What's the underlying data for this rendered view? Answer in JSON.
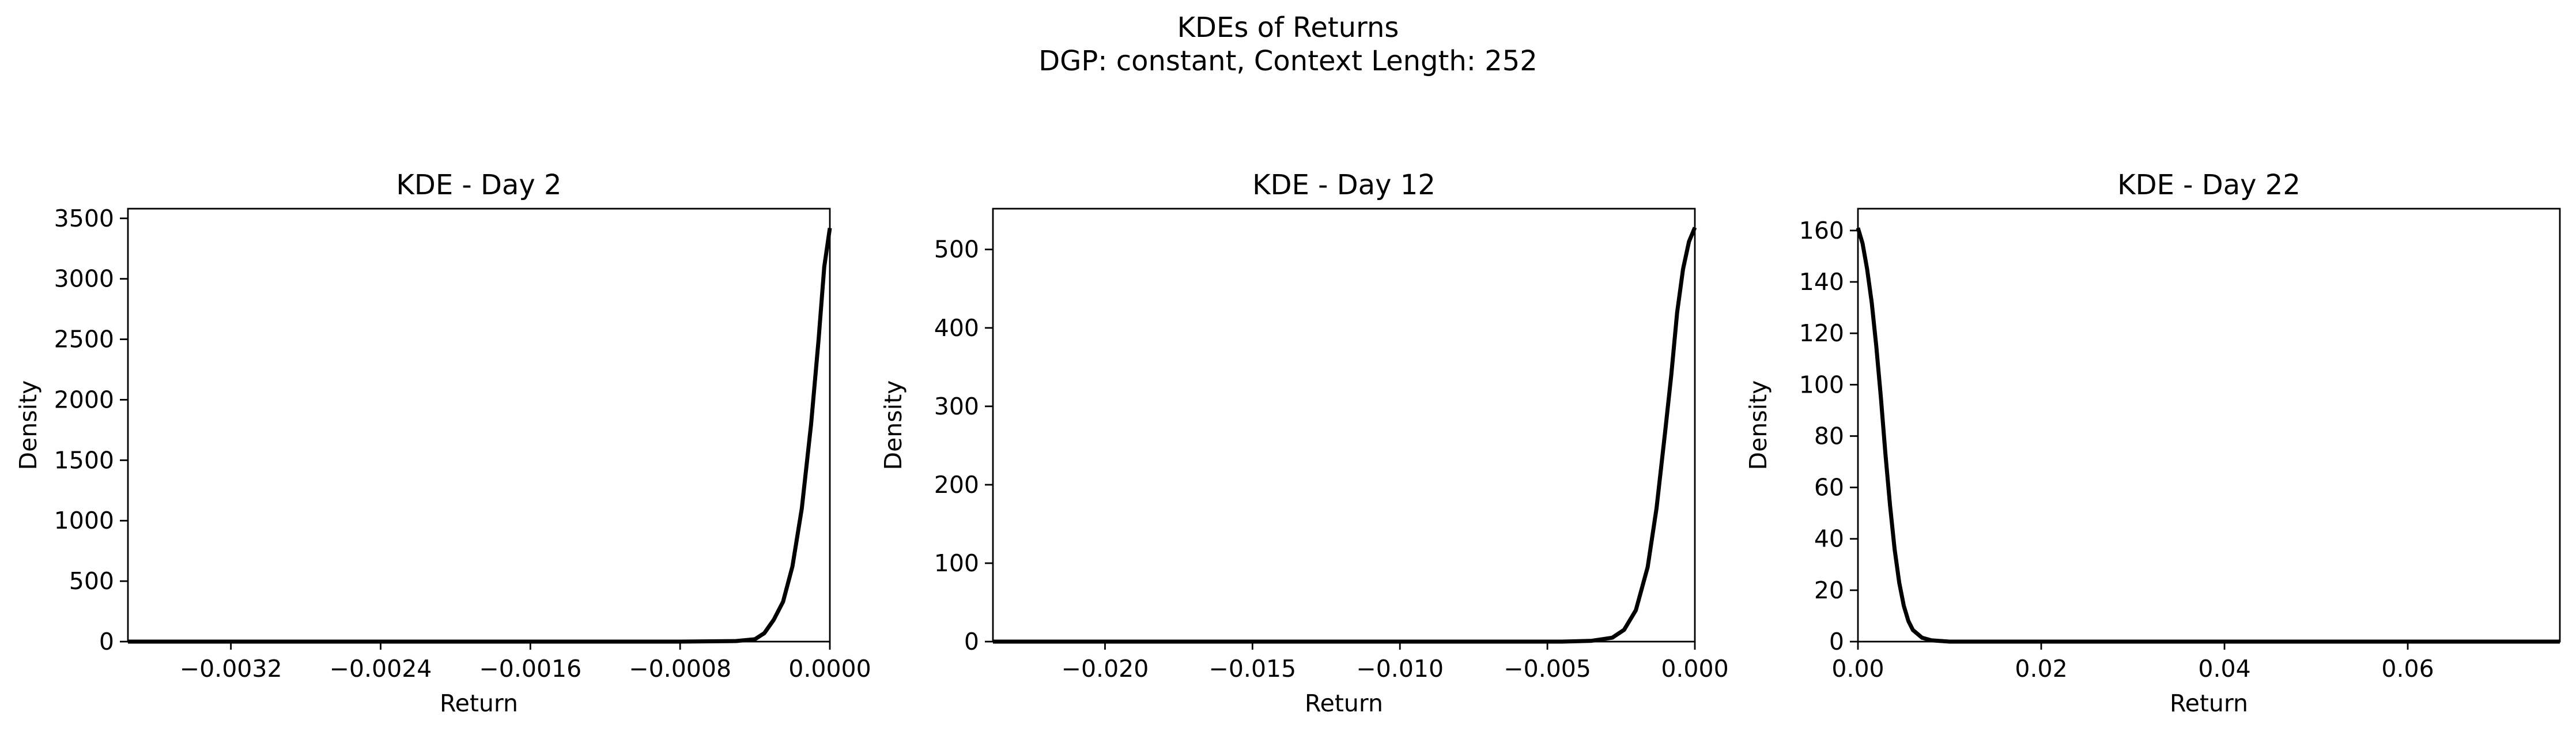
{
  "figure": {
    "suptitle_line1": "KDEs of Returns",
    "suptitle_line2": "DGP: constant, Context Length: 252",
    "line_color": "#000000"
  },
  "chart_data": [
    {
      "type": "line",
      "title": "KDE - Day 2",
      "xlabel": "Return",
      "ylabel": "Density",
      "xlim": [
        -0.00375,
        0.0
      ],
      "ylim": [
        0,
        3580
      ],
      "xticks": [
        -0.0032,
        -0.0024,
        -0.0016,
        -0.0008,
        0.0
      ],
      "xtick_labels": [
        "−0.0032",
        "−0.0024",
        "−0.0016",
        "−0.0008",
        "0.0000"
      ],
      "yticks": [
        0,
        500,
        1000,
        1500,
        2000,
        2500,
        3000,
        3500
      ],
      "ytick_labels": [
        "0",
        "500",
        "1000",
        "1500",
        "2000",
        "2500",
        "3000",
        "3500"
      ],
      "series": [
        {
          "x": [
            -0.00375,
            -0.0008,
            -0.0005,
            -0.0004,
            -0.00035,
            -0.0003,
            -0.00025,
            -0.0002,
            -0.00015,
            -0.0001,
            -6e-05,
            -3e-05,
            0.0
          ],
          "y": [
            0,
            0,
            5,
            20,
            70,
            180,
            330,
            620,
            1100,
            1800,
            2500,
            3100,
            3420
          ]
        }
      ]
    },
    {
      "type": "line",
      "title": "KDE - Day 12",
      "xlabel": "Return",
      "ylabel": "Density",
      "xlim": [
        -0.0238,
        0.0
      ],
      "ylim": [
        0,
        552
      ],
      "xticks": [
        -0.02,
        -0.015,
        -0.01,
        -0.005,
        0.0
      ],
      "xtick_labels": [
        "−0.020",
        "−0.015",
        "−0.010",
        "−0.005",
        "0.000"
      ],
      "yticks": [
        0,
        100,
        200,
        300,
        400,
        500
      ],
      "ytick_labels": [
        "0",
        "100",
        "200",
        "300",
        "400",
        "500"
      ],
      "series": [
        {
          "x": [
            -0.0238,
            -0.0045,
            -0.0035,
            -0.0028,
            -0.0024,
            -0.002,
            -0.0016,
            -0.0013,
            -0.001,
            -0.0008,
            -0.0006,
            -0.0004,
            -0.0002,
            0.0
          ],
          "y": [
            0,
            0,
            1,
            5,
            15,
            40,
            95,
            170,
            270,
            340,
            420,
            475,
            510,
            528
          ]
        }
      ]
    },
    {
      "type": "line",
      "title": "KDE - Day 22",
      "xlabel": "Return",
      "ylabel": "Density",
      "xlim": [
        0.0,
        0.0766
      ],
      "ylim": [
        0,
        168.5
      ],
      "xticks": [
        0.0,
        0.02,
        0.04,
        0.06
      ],
      "xtick_labels": [
        "0.00",
        "0.02",
        "0.04",
        "0.06"
      ],
      "yticks": [
        0,
        20,
        40,
        60,
        80,
        100,
        120,
        140,
        160
      ],
      "ytick_labels": [
        "0",
        "20",
        "40",
        "60",
        "80",
        "100",
        "120",
        "140",
        "160"
      ],
      "series": [
        {
          "x": [
            0.0,
            0.0005,
            0.001,
            0.0015,
            0.002,
            0.0025,
            0.003,
            0.0035,
            0.004,
            0.0045,
            0.005,
            0.0055,
            0.006,
            0.007,
            0.008,
            0.01,
            0.0766
          ],
          "y": [
            161,
            155,
            145,
            132,
            115,
            95,
            73,
            53,
            36,
            23,
            14,
            8,
            4.5,
            1.5,
            0.5,
            0,
            0
          ]
        }
      ]
    }
  ]
}
